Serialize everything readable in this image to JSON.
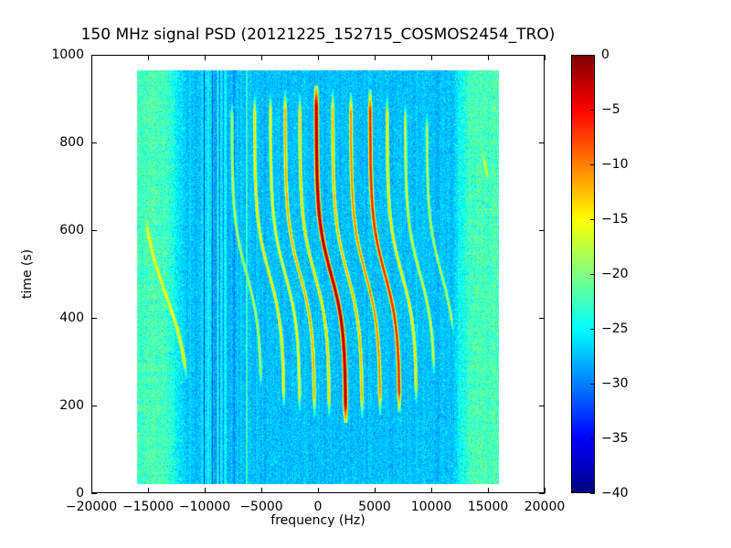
{
  "chart_data": {
    "type": "heatmap",
    "title": "150 MHz signal PSD (20121225_152715_COSMOS2454_TRO)",
    "xlabel": "frequency (Hz)",
    "ylabel": "time (s)",
    "xlim": [
      -20000,
      20000
    ],
    "ylim": [
      0,
      1000
    ],
    "xtick_values": [
      -20000,
      -15000,
      -10000,
      -5000,
      0,
      5000,
      10000,
      15000,
      20000
    ],
    "xtick_labels": [
      "−20000",
      "−15000",
      "−10000",
      "−5000",
      "0",
      "5000",
      "10000",
      "15000",
      "20000"
    ],
    "ytick_values": [
      0,
      200,
      400,
      600,
      800,
      1000
    ],
    "ytick_labels": [
      "0",
      "200",
      "400",
      "600",
      "800",
      "1000"
    ],
    "colorbar": {
      "colormap": "jet",
      "vmin": -40,
      "vmax": 0,
      "tick_values": [
        0,
        -5,
        -10,
        -15,
        -20,
        -25,
        -30,
        -35,
        -40
      ],
      "tick_labels": [
        "0",
        "−5",
        "−10",
        "−15",
        "−20",
        "−25",
        "−30",
        "−35",
        "−40"
      ]
    },
    "data_extent": {
      "freq_hz": [
        -16000,
        16000
      ],
      "time_s": [
        20,
        965
      ]
    },
    "background_level_db": -27.5,
    "edge_bands": {
      "level_db": -22.5,
      "left": {
        "inner_hz": -11600,
        "ramp_hz": 1800
      },
      "right": {
        "inner_hz": 11900,
        "ramp_hz": 1500
      }
    },
    "noise": {
      "base_std_db": 1.05,
      "band_extra_std_db": 0.6,
      "column_std_db": 0.35,
      "row_band_std_db": 0.4,
      "speckle_chance": 0.012
    },
    "noisy_zone": {
      "range_hz": [
        -10300,
        -7300
      ],
      "column_std_db": 1.5
    },
    "stripes": [
      {
        "f_hz": -6300,
        "width_hz": 110,
        "level_db": -22.8
      },
      {
        "f_hz": -9650,
        "width_hz": 150,
        "level_db": -25.0
      },
      {
        "f_hz": -8500,
        "width_hz": 110,
        "level_db": -25.8
      },
      {
        "f_hz": -11250,
        "width_hz": 90,
        "level_db": -26.2
      },
      {
        "f_hz": 8750,
        "width_hz": 120,
        "level_db": -26.3
      },
      {
        "f_hz": 12600,
        "width_hz": 100,
        "level_db": -25.5
      }
    ],
    "doppler_traces": [
      {
        "f_top_hz": -7600,
        "swing_hz": 2600,
        "t_mid_s": 500,
        "tau_s": 125,
        "sigma_hz": 85,
        "peak_db": -17,
        "t_range": [
          230,
          905
        ]
      },
      {
        "f_top_hz": -5600,
        "swing_hz": 2600,
        "t_mid_s": 500,
        "tau_s": 125,
        "sigma_hz": 85,
        "peak_db": -13.5,
        "t_range": [
          190,
          915
        ]
      },
      {
        "f_top_hz": -4200,
        "swing_hz": 2600,
        "t_mid_s": 500,
        "tau_s": 125,
        "sigma_hz": 85,
        "peak_db": -14.5,
        "t_range": [
          180,
          920
        ]
      },
      {
        "f_top_hz": -2900,
        "swing_hz": 2600,
        "t_mid_s": 500,
        "tau_s": 125,
        "sigma_hz": 85,
        "peak_db": -11.5,
        "t_range": [
          175,
          920
        ]
      },
      {
        "f_top_hz": -1600,
        "swing_hz": 2600,
        "t_mid_s": 500,
        "tau_s": 125,
        "sigma_hz": 85,
        "peak_db": -13,
        "t_range": [
          170,
          915
        ]
      },
      {
        "f_top_hz": -150,
        "swing_hz": 2600,
        "t_mid_s": 500,
        "tau_s": 125,
        "sigma_hz": 95,
        "peak_db": -1.5,
        "t_range": [
          160,
          930
        ]
      },
      {
        "f_top_hz": 1300,
        "swing_hz": 2600,
        "t_mid_s": 500,
        "tau_s": 125,
        "sigma_hz": 85,
        "peak_db": -12,
        "t_range": [
          170,
          920
        ]
      },
      {
        "f_top_hz": 2900,
        "swing_hz": 2600,
        "t_mid_s": 500,
        "tau_s": 125,
        "sigma_hz": 85,
        "peak_db": -10,
        "t_range": [
          180,
          915
        ]
      },
      {
        "f_top_hz": 4600,
        "swing_hz": 2600,
        "t_mid_s": 500,
        "tau_s": 125,
        "sigma_hz": 90,
        "peak_db": -6,
        "t_range": [
          185,
          920
        ]
      },
      {
        "f_top_hz": 6100,
        "swing_hz": 2600,
        "t_mid_s": 500,
        "tau_s": 125,
        "sigma_hz": 85,
        "peak_db": -13.5,
        "t_range": [
          200,
          910
        ]
      },
      {
        "f_top_hz": 7700,
        "swing_hz": 2600,
        "t_mid_s": 500,
        "tau_s": 125,
        "sigma_hz": 85,
        "peak_db": -16,
        "t_range": [
          260,
          900
        ]
      },
      {
        "f_top_hz": 9600,
        "swing_hz": 2600,
        "t_mid_s": 500,
        "tau_s": 125,
        "sigma_hz": 85,
        "peak_db": -17,
        "t_range": [
          350,
          880
        ]
      },
      {
        "f_top_hz": -15650,
        "swing_hz": 4400,
        "t_mid_s": 455,
        "tau_s": 160,
        "sigma_hz": 110,
        "peak_db": -14.5,
        "t_range": [
          255,
          645
        ]
      },
      {
        "f_top_hz": -15350,
        "swing_hz": 2600,
        "t_mid_s": 500,
        "tau_s": 125,
        "sigma_hz": 100,
        "peak_db": -15,
        "t_range": [
          825,
          885
        ]
      },
      {
        "f_top_hz": 13900,
        "swing_hz": 1600,
        "t_mid_s": 755,
        "tau_s": 100,
        "sigma_hz": 100,
        "peak_db": -15,
        "t_range": [
          690,
          800
        ]
      }
    ]
  }
}
